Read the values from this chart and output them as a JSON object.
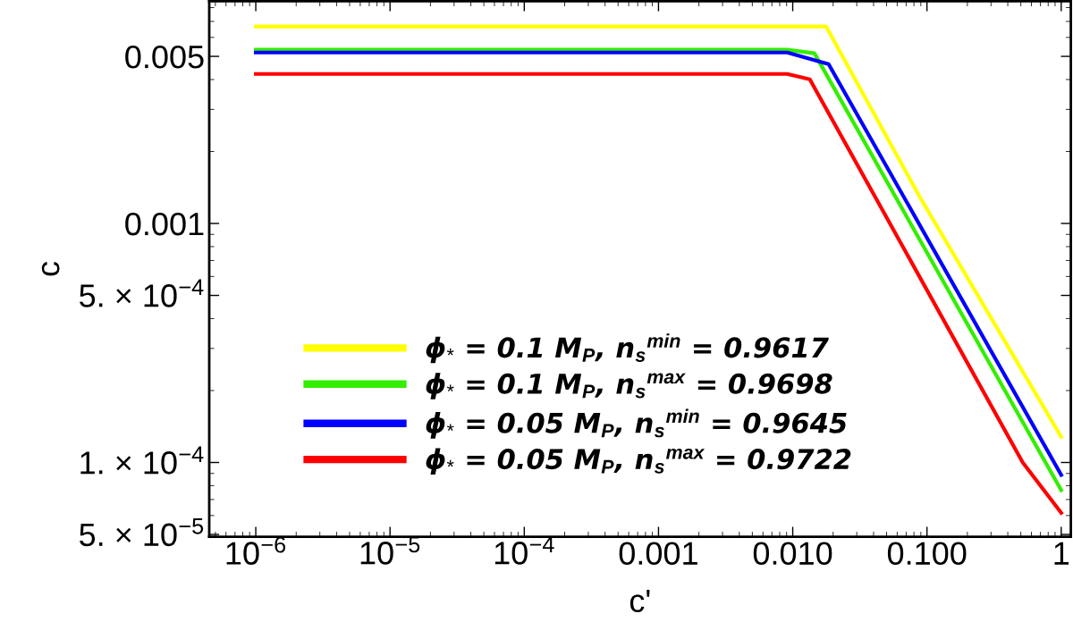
{
  "chart_data": {
    "type": "line",
    "xlabel": "c'",
    "ylabel": "c",
    "log": "xy",
    "xlim": [
      4.5e-07,
      1.18
    ],
    "ylim": [
      4.89e-05,
      0.0085
    ],
    "xticks": [
      {
        "value": 1e-06,
        "label": "10$^{−6}$"
      },
      {
        "value": 1e-05,
        "label": "10$^{−5}$"
      },
      {
        "value": 0.0001,
        "label": "10$^{−4}$"
      },
      {
        "value": 0.001,
        "label": "0.001"
      },
      {
        "value": 0.01,
        "label": "0.010"
      },
      {
        "value": 0.1,
        "label": "0.100"
      },
      1
    ],
    "yticks": [
      {
        "value": 5e-05,
        "label": "5. × 10$^{−5}$"
      },
      {
        "value": 0.0001,
        "label": "1. × 10$^{−4}$"
      },
      {
        "value": 0.0005,
        "label": "5. × 10$^{−4}$"
      },
      {
        "value": 0.001,
        "label": "0.001"
      },
      {
        "value": 0.005,
        "label": "0.005"
      }
    ],
    "grid": false,
    "legend": "bottom",
    "marker": "none",
    "line_style": "solid",
    "series": [
      {
        "name": "ϕ$_{*}$ = 0.1 M$_{P}$, n$_{s}$$^{min}$ = 0.9617",
        "color": "#ffff00",
        "x": [
          1e-06,
          0.0177,
          0.0885,
          1
        ],
        "values": [
          0.00667,
          0.00667,
          0.00129,
          0.000128
        ]
      },
      {
        "name": "ϕ$_{*}$ = 0.1 M$_{P}$, n$_{s}$$^{max}$ = 0.9698",
        "color": "#33ee00",
        "x": [
          1e-06,
          0.0091,
          0.0145,
          1
        ],
        "values": [
          0.00533,
          0.00533,
          0.00515,
          7.66e-05
        ]
      },
      {
        "name": "ϕ$_{*}$ = 0.05 M$_{P}$, n$_{s}$$^{min}$ = 0.9645",
        "color": "#0000ff",
        "x": [
          1e-06,
          0.0091,
          0.0185,
          1
        ],
        "values": [
          0.00519,
          0.00519,
          0.00464,
          8.87e-05
        ]
      },
      {
        "name": "ϕ$_{*}$ = 0.05 M$_{P}$, n$_{s}$$^{max}$ = 0.9722",
        "color": "#ff0000",
        "x": [
          1e-06,
          0.0091,
          0.0134,
          0.517,
          1
        ],
        "values": [
          0.00422,
          0.00422,
          0.00401,
          0.0001,
          6.16e-05
        ]
      }
    ]
  }
}
